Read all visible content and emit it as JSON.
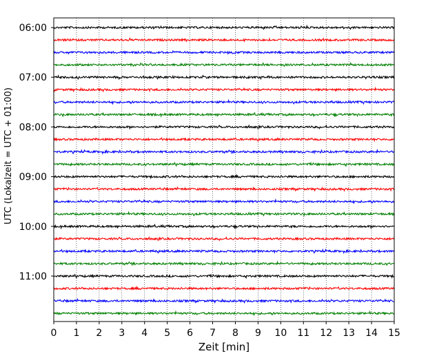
{
  "chart_data": {
    "type": "line",
    "title": "",
    "xlabel": "Zeit  [min]",
    "ylabel": "UTC (Lokalzeit = UTC + 01:00)",
    "xlim": [
      0,
      15
    ],
    "x_ticks": [
      0,
      1,
      2,
      3,
      4,
      5,
      6,
      7,
      8,
      9,
      10,
      11,
      12,
      13,
      14,
      15
    ],
    "x_tick_labels": [
      "0",
      "1",
      "2",
      "3",
      "4",
      "5",
      "6",
      "7",
      "8",
      "9",
      "10",
      "11",
      "12",
      "13",
      "14",
      "15"
    ],
    "y_ticks": [
      "06:00",
      "07:00",
      "08:00",
      "09:00",
      "10:00",
      "11:00"
    ],
    "grid": "vertical dotted",
    "trace_interval_min": 15,
    "start_time": "06:00",
    "trace_count": 24,
    "trace_colors": [
      "#000000",
      "#ff0000",
      "#0000ff",
      "#008000"
    ]
  }
}
